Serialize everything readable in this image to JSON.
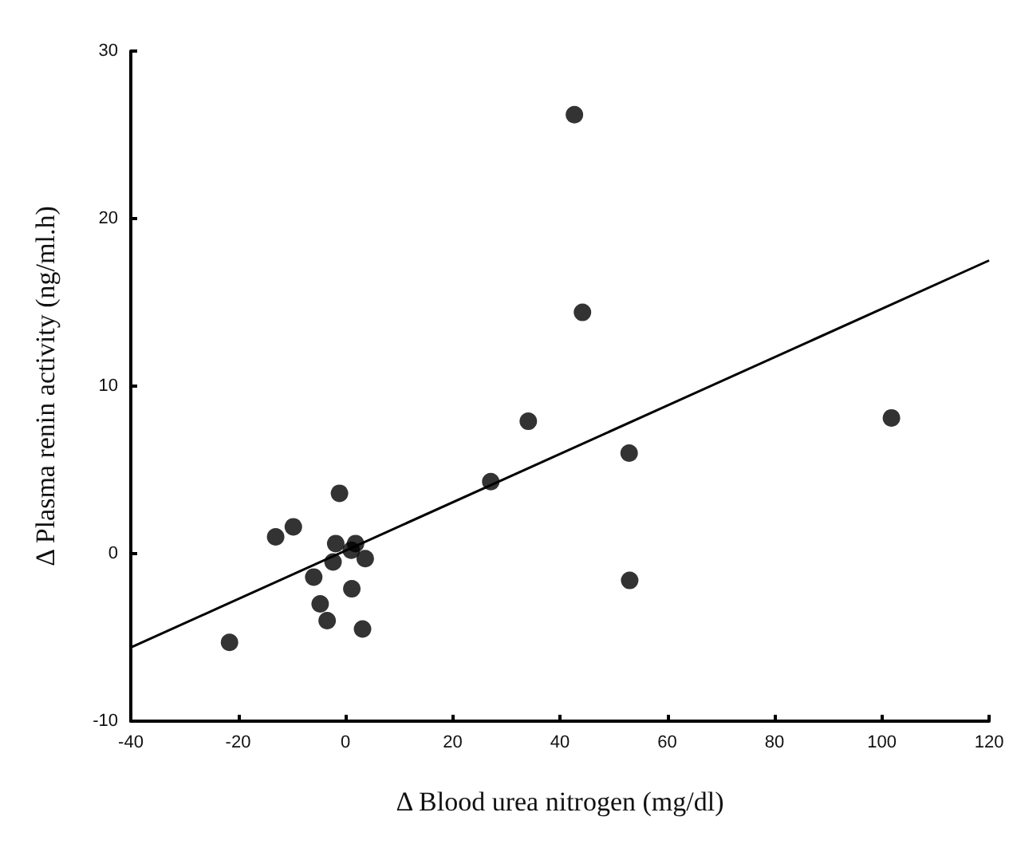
{
  "chart_data": {
    "type": "scatter",
    "xlabel": "Δ Blood urea nitrogen (mg/dl)",
    "ylabel": "Δ Plasma renin activity (ng/ml.h)",
    "xlim": [
      -40,
      120
    ],
    "xticks": [
      -40,
      -20,
      0,
      20,
      40,
      60,
      80,
      100,
      120
    ],
    "ylim": [
      -10,
      30
    ],
    "yticks": [
      -10,
      0,
      10,
      20,
      30
    ],
    "grid": false,
    "marker": "circle",
    "series": [
      {
        "type": "scatter",
        "color": "#000000",
        "x": [
          42.7,
          44.2,
          34.1,
          101.8,
          52.9,
          27.1,
          53.0,
          -1.1,
          -9.7,
          -13.0,
          -1.8,
          1.9,
          1.1,
          3.7,
          -2.3,
          -5.9,
          1.2,
          -4.7,
          -3.4,
          3.2,
          -21.6
        ],
        "values": [
          26.2,
          14.4,
          7.9,
          8.1,
          6.0,
          4.3,
          -1.6,
          3.6,
          1.6,
          1.0,
          0.6,
          0.6,
          0.2,
          -0.3,
          -0.5,
          -1.4,
          -2.1,
          -3.0,
          -4.0,
          -4.5,
          -5.3
        ]
      },
      {
        "type": "line",
        "color": "#000000",
        "x": [
          -40,
          120
        ],
        "values": [
          -5.6,
          17.5
        ],
        "marker": "none",
        "line_style": "solid"
      }
    ]
  }
}
